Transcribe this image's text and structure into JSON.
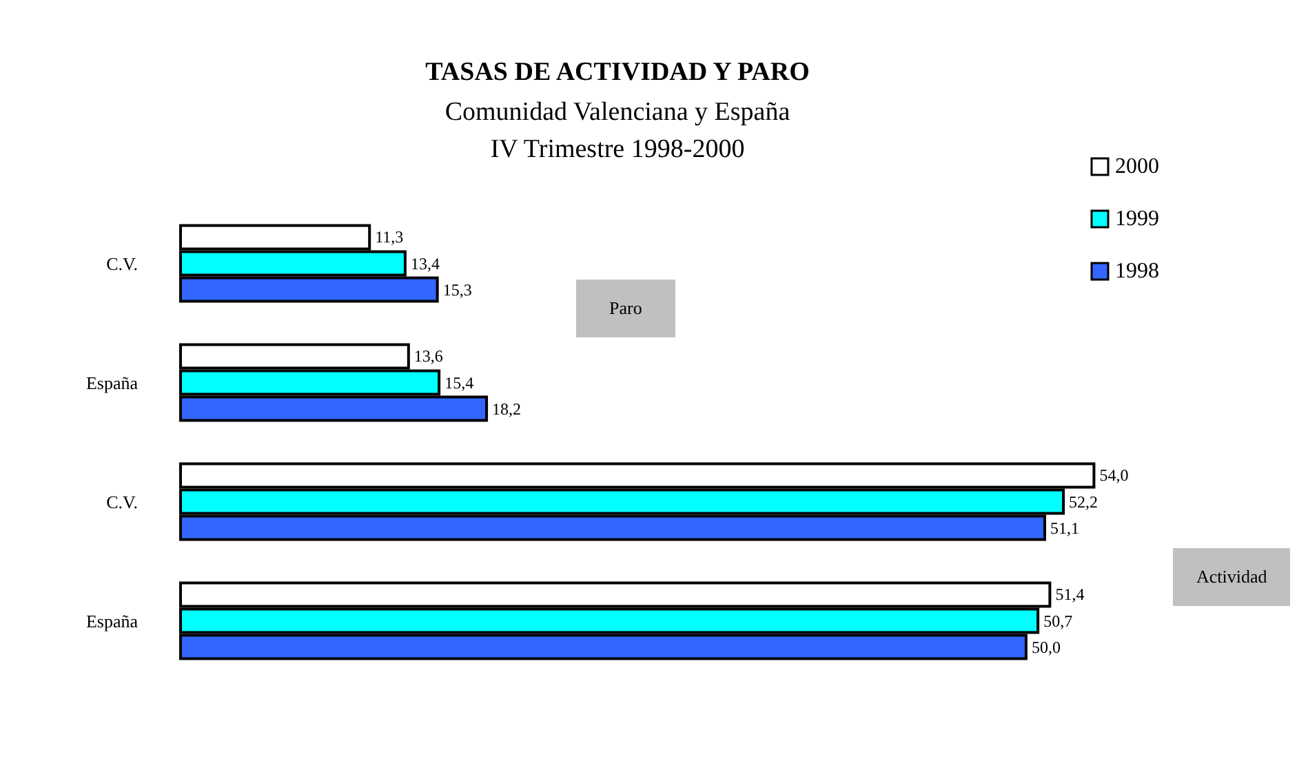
{
  "chart_data": {
    "type": "bar",
    "orientation": "horizontal",
    "title": "TASAS DE ACTIVIDAD Y PARO",
    "subtitle": "Comunidad Valenciana y España\nIV Trimestre 1998-2000",
    "categories": [
      "C.V.",
      "España",
      "C.V.",
      "España"
    ],
    "series": [
      {
        "name": "2000",
        "color": "#ffffff",
        "values": [
          11.3,
          13.6,
          54.0,
          51.4
        ],
        "value_labels": [
          "11,3",
          "13,6",
          "54,0",
          "51,4"
        ]
      },
      {
        "name": "1999",
        "color": "#00ffff",
        "values": [
          13.4,
          15.4,
          52.2,
          50.7
        ],
        "value_labels": [
          "13,4",
          "15,4",
          "52,2",
          "50,7"
        ]
      },
      {
        "name": "1998",
        "color": "#3366ff",
        "values": [
          15.3,
          18.2,
          51.1,
          50.0
        ],
        "value_labels": [
          "15,3",
          "18,2",
          "51,1",
          "50,0"
        ]
      }
    ],
    "annotations": [
      "Paro",
      "Actividad"
    ],
    "legend": "top right",
    "grid": false
  }
}
